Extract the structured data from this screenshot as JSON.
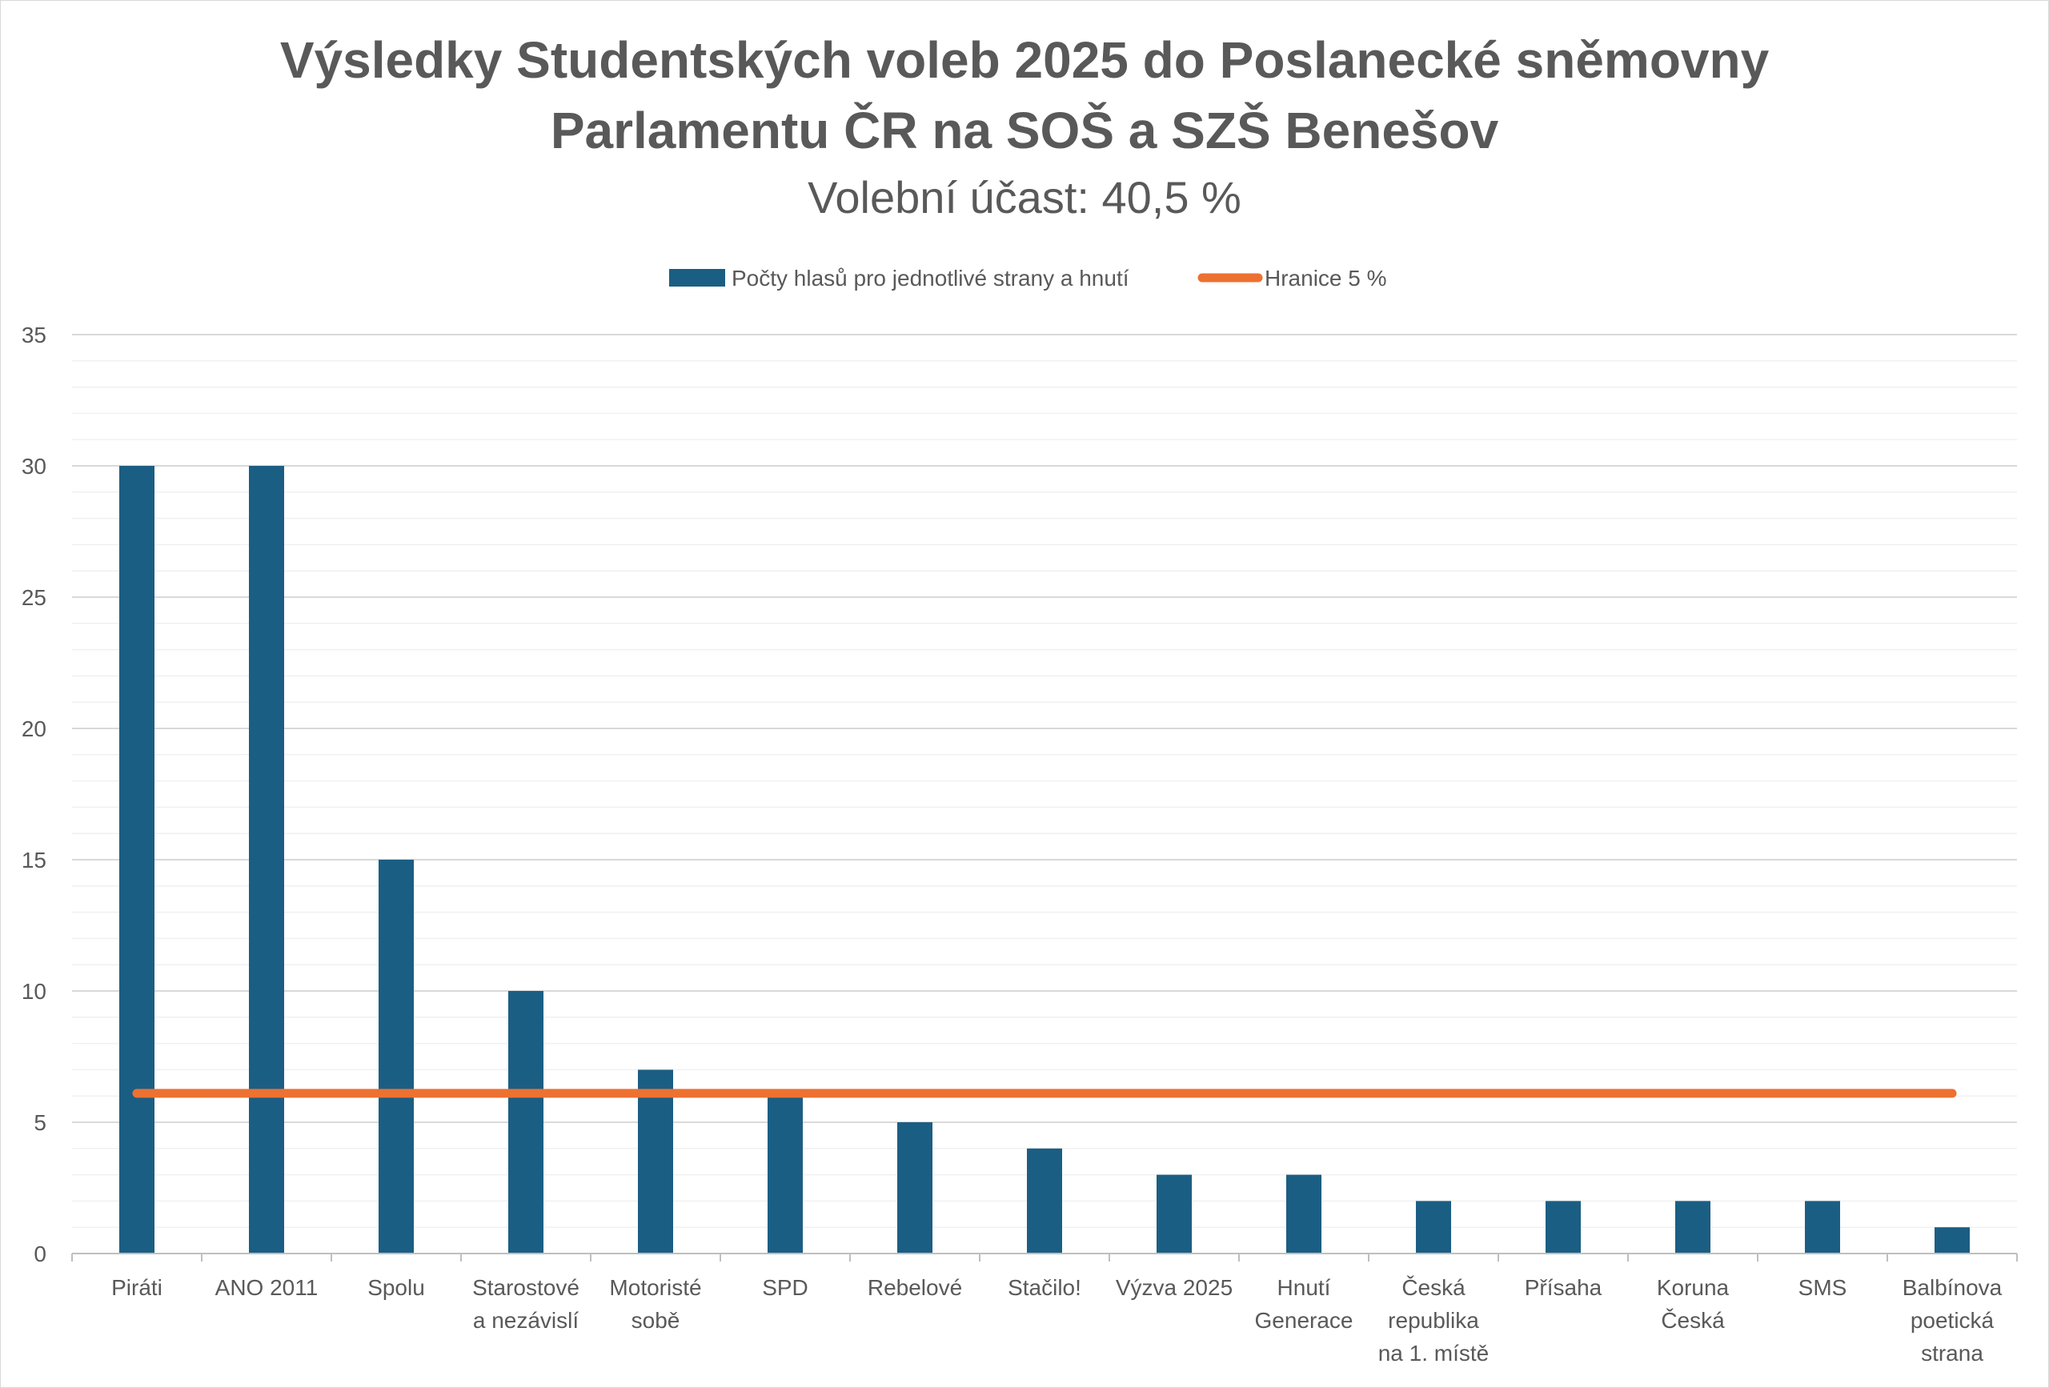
{
  "chart_data": {
    "type": "bar",
    "title_line1": "Výsledky Studentských voleb 2025 do Poslanecké sněmovny",
    "title_line2": "Parlamentu ČR na SOŠ a SZŠ Benešov",
    "subtitle": "Volební účast: 40,5 %",
    "categories": [
      [
        "Piráti"
      ],
      [
        "ANO 2011"
      ],
      [
        "Spolu"
      ],
      [
        "Starostové",
        "a nezávislí"
      ],
      [
        "Motoristé",
        "sobě"
      ],
      [
        "SPD"
      ],
      [
        "Rebelové"
      ],
      [
        "Stačilo!"
      ],
      [
        "Výzva 2025"
      ],
      [
        "Hnutí",
        "Generace"
      ],
      [
        "Česká",
        "republika",
        "na 1. místě"
      ],
      [
        "Přísaha"
      ],
      [
        "Koruna",
        "Česká"
      ],
      [
        "SMS"
      ],
      [
        "Balbínova",
        "poetická",
        "strana"
      ]
    ],
    "series": [
      {
        "name": "Počty hlasů pro jednotlivé strany a hnutí",
        "type": "bar",
        "color": "#1b5e83",
        "values": [
          30,
          30,
          15,
          10,
          7,
          6,
          5,
          4,
          3,
          3,
          2,
          2,
          2,
          2,
          1
        ]
      },
      {
        "name": "Hranice 5 %",
        "type": "line",
        "color": "#ed7131",
        "values": [
          6.1,
          6.1,
          6.1,
          6.1,
          6.1,
          6.1,
          6.1,
          6.1,
          6.1,
          6.1,
          6.1,
          6.1,
          6.1,
          6.1,
          6.1
        ]
      }
    ],
    "ylim": [
      0,
      35
    ],
    "yticks": [
      0,
      5,
      10,
      15,
      20,
      25,
      30,
      35
    ],
    "grid": true,
    "legend_position": "top"
  }
}
